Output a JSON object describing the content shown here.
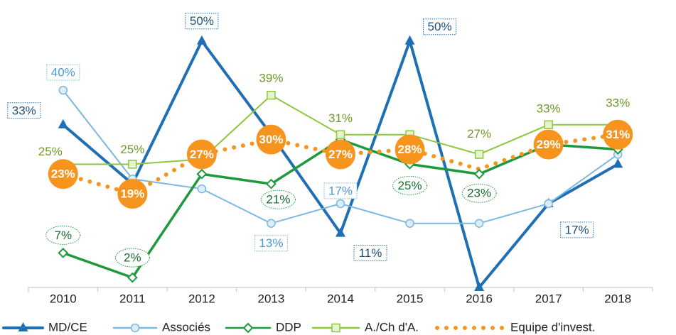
{
  "chart_data": {
    "type": "line",
    "categories": [
      "2010",
      "2011",
      "2012",
      "2013",
      "2014",
      "2015",
      "2016",
      "2017",
      "2018"
    ],
    "ylim": [
      0,
      55
    ],
    "series": [
      {
        "name": "MD/CE",
        "color": "#1f6fb5",
        "marker": "triangle",
        "values": [
          33,
          21,
          50,
          31,
          11,
          50,
          0,
          17,
          25
        ],
        "value_labels": [
          "33%",
          null,
          "50%",
          null,
          "11%",
          "50%",
          null,
          "17%",
          null
        ]
      },
      {
        "name": "Associés",
        "color": "#7ab8e0",
        "marker": "circle",
        "values": [
          40,
          22,
          20,
          13,
          17,
          13,
          13,
          17,
          27
        ],
        "value_labels": [
          "40%",
          null,
          null,
          "13%",
          "17%",
          null,
          null,
          null,
          null
        ]
      },
      {
        "name": "DDP",
        "color": "#1e9a3c",
        "marker": "diamond",
        "values": [
          7,
          2,
          23,
          21,
          30,
          25,
          23,
          29,
          28
        ],
        "value_labels": [
          "7%",
          "2%",
          null,
          "21%",
          null,
          "25%",
          "23%",
          null,
          null
        ]
      },
      {
        "name": "A./Ch d'A.",
        "color": "#8dc63f",
        "marker": "square",
        "values": [
          25,
          25,
          26,
          39,
          31,
          31,
          27,
          33,
          33
        ],
        "value_labels": [
          "25%",
          "25%",
          null,
          "39%",
          "31%",
          null,
          "27%",
          "33%",
          "33%"
        ]
      },
      {
        "name": "Equipe d'invest.",
        "color": "#f7941d",
        "marker": "dotted",
        "values": [
          23,
          19,
          27,
          30,
          27,
          28,
          24,
          29,
          31
        ],
        "value_labels": [
          "23%",
          "19%",
          "27%",
          "30%",
          "27%",
          "28%",
          null,
          "29%",
          "31%"
        ]
      }
    ]
  }
}
